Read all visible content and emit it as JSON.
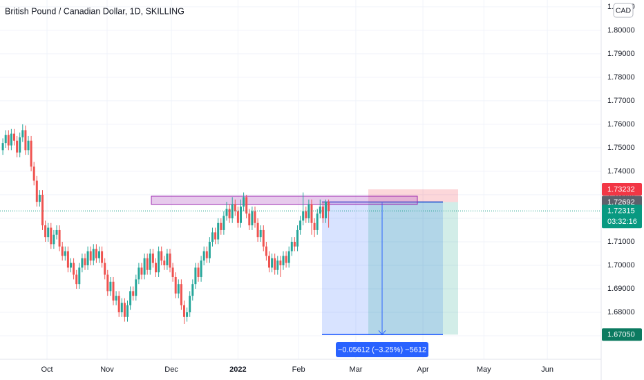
{
  "chart_data": {
    "type": "candlestick",
    "title": "British Pound / Canadian Dollar, 1D, SKILLING",
    "currency": "CAD",
    "up_color": "#26a69a",
    "down_color": "#ef5350",
    "grid": true,
    "ylim": [
      1.66,
      1.8129
    ],
    "yticks": [
      {
        "value": 1.67,
        "label": "1.67000"
      },
      {
        "value": 1.68,
        "label": "1.68000"
      },
      {
        "value": 1.69,
        "label": "1.69000"
      },
      {
        "value": 1.7,
        "label": "1.70000"
      },
      {
        "value": 1.71,
        "label": "1.71000"
      },
      {
        "value": 1.72,
        "label": "1.72000"
      },
      {
        "value": 1.73,
        "label": "1.73000"
      },
      {
        "value": 1.74,
        "label": "1.74000"
      },
      {
        "value": 1.75,
        "label": "1.75000"
      },
      {
        "value": 1.76,
        "label": "1.76000"
      },
      {
        "value": 1.77,
        "label": "1.77000"
      },
      {
        "value": 1.78,
        "label": "1.78000"
      },
      {
        "value": 1.79,
        "label": "1.79000"
      },
      {
        "value": 1.8,
        "label": "1.80000"
      },
      {
        "value": 1.81,
        "label": "1.81000"
      }
    ],
    "xlim": [
      -1,
      211.2
    ],
    "xticks": [
      {
        "value": 15.6,
        "label": "Oct"
      },
      {
        "value": 36.8,
        "label": "Nov"
      },
      {
        "value": 59.5,
        "label": "Dec"
      },
      {
        "value": 83,
        "label": "2022"
      },
      {
        "value": 104.4,
        "label": "Feb"
      },
      {
        "value": 124.6,
        "label": "Mar"
      },
      {
        "value": 148.3,
        "label": "Apr"
      },
      {
        "value": 169.8,
        "label": "May"
      },
      {
        "value": 192.2,
        "label": "Jun"
      }
    ],
    "candles": {
      "open": [
        1.749,
        1.752,
        1.7555,
        1.751,
        1.756,
        1.753,
        1.748,
        1.7545,
        1.7575,
        1.749,
        1.753,
        1.742,
        1.736,
        1.727,
        1.73,
        1.717,
        1.712,
        1.716,
        1.709,
        1.713,
        1.715,
        1.708,
        1.704,
        1.706,
        1.699,
        1.701,
        1.696,
        1.692,
        1.699,
        1.703,
        1.7,
        1.706,
        1.702,
        1.707,
        1.703,
        1.706,
        1.701,
        1.696,
        1.689,
        1.693,
        1.685,
        1.687,
        1.68,
        1.684,
        1.678,
        1.683,
        1.689,
        1.687,
        1.694,
        1.699,
        1.696,
        1.703,
        1.698,
        1.705,
        1.701,
        1.697,
        1.706,
        1.702,
        1.7,
        1.705,
        1.699,
        1.695,
        1.688,
        1.692,
        1.683,
        1.678,
        1.68,
        1.687,
        1.692,
        1.699,
        1.695,
        1.702,
        1.706,
        1.703,
        1.71,
        1.714,
        1.711,
        1.718,
        1.715,
        1.721,
        1.724,
        1.72,
        1.726,
        1.723,
        1.718,
        1.725,
        1.729,
        1.722,
        1.717,
        1.723,
        1.718,
        1.712,
        1.715,
        1.708,
        1.704,
        1.699,
        1.703,
        1.698,
        1.702,
        1.7,
        1.704,
        1.701,
        1.706,
        1.71,
        1.708,
        1.715,
        1.719,
        1.723,
        1.72,
        1.726,
        1.718,
        1.715,
        1.722,
        1.725,
        1.72,
        1.727
      ],
      "high": [
        1.754,
        1.7575,
        1.7575,
        1.758,
        1.758,
        1.755,
        1.7565,
        1.76,
        1.7595,
        1.755,
        1.755,
        1.744,
        1.738,
        1.732,
        1.732,
        1.719,
        1.718,
        1.718,
        1.715,
        1.717,
        1.717,
        1.71,
        1.708,
        1.708,
        1.703,
        1.703,
        1.698,
        1.701,
        1.705,
        1.705,
        1.708,
        1.708,
        1.709,
        1.709,
        1.708,
        1.708,
        1.703,
        1.698,
        1.695,
        1.695,
        1.689,
        1.689,
        1.686,
        1.686,
        1.685,
        1.691,
        1.691,
        1.696,
        1.701,
        1.701,
        1.705,
        1.705,
        1.707,
        1.707,
        1.703,
        1.708,
        1.708,
        1.704,
        1.707,
        1.707,
        1.701,
        1.697,
        1.694,
        1.694,
        1.685,
        1.682,
        1.689,
        1.694,
        1.701,
        1.701,
        1.704,
        1.708,
        1.708,
        1.712,
        1.716,
        1.716,
        1.72,
        1.72,
        1.723,
        1.727,
        1.726,
        1.729,
        1.728,
        1.725,
        1.728,
        1.731,
        1.73,
        1.724,
        1.725,
        1.725,
        1.72,
        1.717,
        1.717,
        1.71,
        1.706,
        1.705,
        1.705,
        1.704,
        1.704,
        1.706,
        1.706,
        1.708,
        1.712,
        1.712,
        1.717,
        1.721,
        1.731,
        1.725,
        1.728,
        1.728,
        1.72,
        1.724,
        1.728,
        1.727,
        1.728,
        1.728
      ],
      "low": [
        1.747,
        1.75,
        1.749,
        1.749,
        1.751,
        1.746,
        1.746,
        1.7525,
        1.747,
        1.747,
        1.74,
        1.734,
        1.725,
        1.725,
        1.715,
        1.71,
        1.71,
        1.707,
        1.707,
        1.711,
        1.706,
        1.702,
        1.702,
        1.697,
        1.697,
        1.694,
        1.69,
        1.69,
        1.697,
        1.698,
        1.698,
        1.7,
        1.7,
        1.701,
        1.701,
        1.699,
        1.694,
        1.687,
        1.687,
        1.683,
        1.683,
        1.678,
        1.678,
        1.676,
        1.676,
        1.681,
        1.685,
        1.685,
        1.692,
        1.694,
        1.694,
        1.696,
        1.696,
        1.699,
        1.695,
        1.695,
        1.7,
        1.698,
        1.698,
        1.697,
        1.693,
        1.686,
        1.686,
        1.681,
        1.675,
        1.676,
        1.678,
        1.685,
        1.69,
        1.693,
        1.693,
        1.7,
        1.701,
        1.701,
        1.708,
        1.709,
        1.709,
        1.713,
        1.713,
        1.719,
        1.718,
        1.718,
        1.721,
        1.716,
        1.716,
        1.723,
        1.72,
        1.715,
        1.715,
        1.716,
        1.71,
        1.71,
        1.706,
        1.702,
        1.697,
        1.697,
        1.696,
        1.696,
        1.695,
        1.698,
        1.699,
        1.699,
        1.704,
        1.706,
        1.706,
        1.713,
        1.717,
        1.718,
        1.718,
        1.713,
        1.712,
        1.713,
        1.72,
        1.718,
        1.718,
        1.716
      ],
      "close": [
        1.752,
        1.7555,
        1.751,
        1.756,
        1.753,
        1.748,
        1.7545,
        1.7575,
        1.749,
        1.753,
        1.742,
        1.736,
        1.727,
        1.73,
        1.717,
        1.712,
        1.716,
        1.709,
        1.713,
        1.715,
        1.708,
        1.704,
        1.706,
        1.699,
        1.701,
        1.696,
        1.692,
        1.699,
        1.703,
        1.7,
        1.706,
        1.702,
        1.707,
        1.703,
        1.706,
        1.701,
        1.696,
        1.689,
        1.693,
        1.685,
        1.687,
        1.68,
        1.684,
        1.678,
        1.683,
        1.689,
        1.687,
        1.694,
        1.699,
        1.696,
        1.703,
        1.698,
        1.705,
        1.701,
        1.697,
        1.706,
        1.702,
        1.7,
        1.705,
        1.699,
        1.695,
        1.688,
        1.692,
        1.683,
        1.678,
        1.68,
        1.687,
        1.692,
        1.699,
        1.695,
        1.702,
        1.706,
        1.703,
        1.71,
        1.714,
        1.711,
        1.718,
        1.715,
        1.721,
        1.724,
        1.72,
        1.726,
        1.723,
        1.718,
        1.725,
        1.729,
        1.722,
        1.717,
        1.723,
        1.718,
        1.712,
        1.715,
        1.708,
        1.704,
        1.699,
        1.703,
        1.698,
        1.702,
        1.7,
        1.704,
        1.701,
        1.706,
        1.71,
        1.708,
        1.715,
        1.719,
        1.723,
        1.72,
        1.726,
        1.718,
        1.715,
        1.722,
        1.725,
        1.72,
        1.727,
        1.72315
      ]
    },
    "zone": [
      1.7259,
      1.7294
    ],
    "position": {
      "entry": 1.72692,
      "stop": 1.73232,
      "target": 1.6705
    },
    "measure_label": "−0.05612 (−3.25%) −5612",
    "price_labels": [
      {
        "value": 1.73232,
        "label": "1.73232",
        "color": "#f23645"
      },
      {
        "value": 1.72692,
        "label": "1.72692",
        "color": "#5d606b"
      },
      {
        "value": 1.6705,
        "label": "1.67050",
        "color": "#0c7a60"
      }
    ],
    "last_price": {
      "value": 1.72315,
      "label": "1.72315",
      "countdown": "03:32:16",
      "color": "#089981"
    }
  }
}
